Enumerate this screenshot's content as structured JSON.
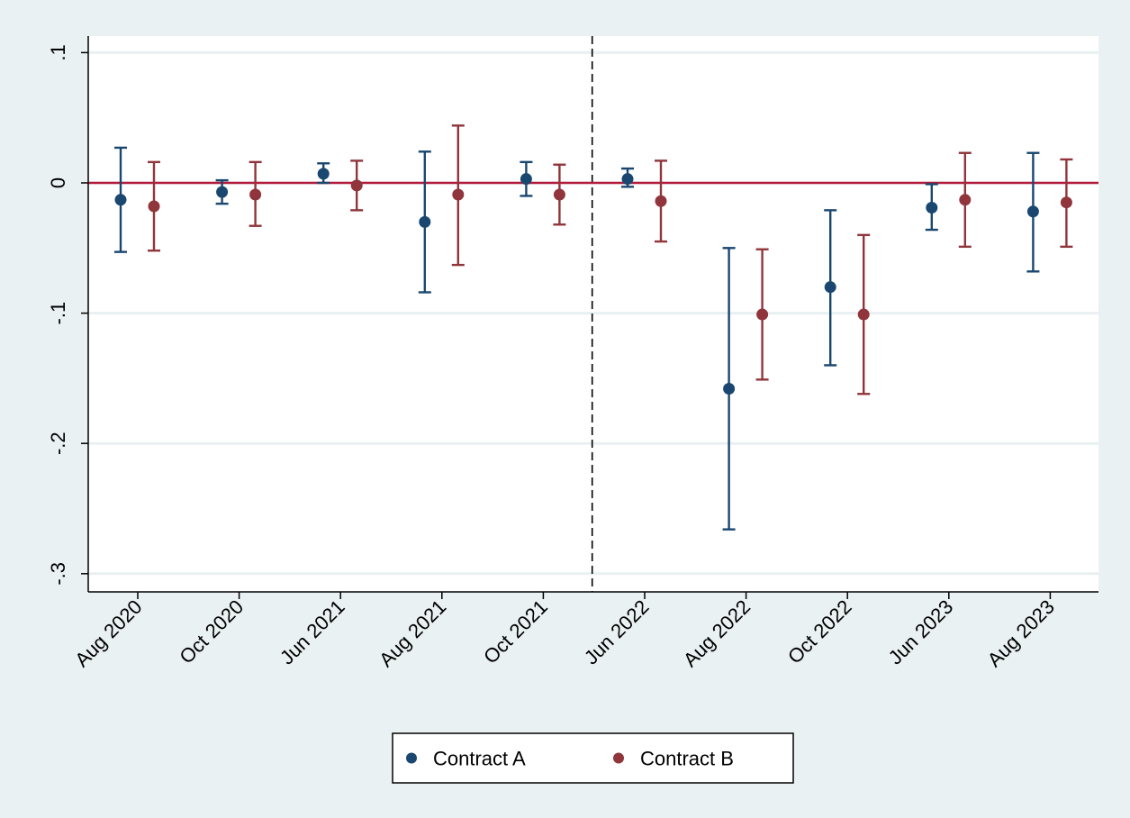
{
  "colors": {
    "outer_background": "#eaf1f3",
    "plot_background": "#ffffff",
    "gridline": "#e9f0f1",
    "contract_a": "#1a476f",
    "contract_b": "#90353b",
    "zero_line": "#b3193b",
    "event_line": "#000000"
  },
  "chart_data": {
    "type": "scatter",
    "subtype": "coefficient plot with 95% confidence intervals",
    "title": "",
    "xlabel": "",
    "ylabel": "",
    "categories": [
      "Aug 2020",
      "Oct 2020",
      "Jun 2021",
      "Aug 2021",
      "Oct 2021",
      "Jun 2022",
      "Aug 2022",
      "Oct 2022",
      "Jun 2023",
      "Aug 2023"
    ],
    "ylim": [
      -0.31,
      0.11
    ],
    "yticks": [
      0.1,
      0,
      -0.1,
      -0.2,
      -0.3
    ],
    "ytick_labels": [
      ".1",
      "0",
      "-.1",
      "-.2",
      "-.3"
    ],
    "grid": true,
    "reference_line_y": 0,
    "event_line_between": [
      "Oct 2021",
      "Jun 2022"
    ],
    "legend_position": "bottom",
    "series": [
      {
        "name": "Contract A",
        "color_key": "contract_a",
        "estimate": [
          -0.013,
          -0.007,
          0.007,
          -0.03,
          0.003,
          0.003,
          -0.158,
          -0.08,
          -0.019,
          -0.022
        ],
        "ci_low": [
          -0.053,
          -0.016,
          0.0,
          -0.084,
          -0.01,
          -0.003,
          -0.266,
          -0.14,
          -0.036,
          -0.068
        ],
        "ci_high": [
          0.027,
          0.002,
          0.015,
          0.024,
          0.016,
          0.011,
          -0.05,
          -0.021,
          -0.001,
          0.023
        ]
      },
      {
        "name": "Contract B",
        "color_key": "contract_b",
        "estimate": [
          -0.018,
          -0.009,
          -0.002,
          -0.009,
          -0.009,
          -0.014,
          -0.101,
          -0.101,
          -0.013,
          -0.015
        ],
        "ci_low": [
          -0.052,
          -0.033,
          -0.021,
          -0.063,
          -0.032,
          -0.045,
          -0.151,
          -0.162,
          -0.049,
          -0.049
        ],
        "ci_high": [
          0.016,
          0.016,
          0.017,
          0.044,
          0.014,
          0.017,
          -0.051,
          -0.04,
          0.023,
          0.018
        ]
      }
    ]
  }
}
